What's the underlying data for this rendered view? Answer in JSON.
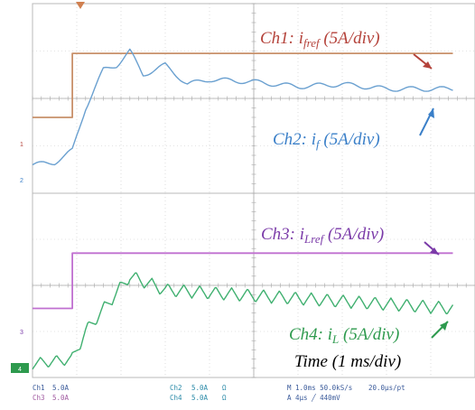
{
  "chart_data": {
    "type": "line",
    "instrument": "oscilloscope",
    "time_label": "Time (1 ms/div)",
    "annotations": [
      {
        "prefix": "Ch1: i",
        "sub": "fref",
        "suffix": " (5A/div)",
        "color": "#b4423a"
      },
      {
        "prefix": "Ch2: i",
        "sub": "f",
        "suffix": " (5A/div)",
        "color": "#3a7fc8"
      },
      {
        "prefix": "Ch3: i",
        "sub": "Lref",
        "suffix": " (5A/div)",
        "color": "#7a3aa8"
      },
      {
        "prefix": "Ch4: i",
        "sub": "L",
        "suffix": " (5A/div)",
        "color": "#2e9a4e"
      }
    ],
    "series": [
      {
        "name": "Ch1",
        "color": "#c8906a",
        "x": [
          0,
          0.9,
          0.9,
          9.5
        ],
        "y": [
          1.6,
          1.6,
          2.95,
          2.95
        ]
      },
      {
        "name": "Ch2",
        "color": "#6aa0d0",
        "x": [
          0,
          0.5,
          0.9,
          1.2,
          1.6,
          1.9,
          2.2,
          2.5,
          3,
          3.5,
          4,
          5,
          6,
          7,
          8,
          9.5
        ],
        "y": [
          0.6,
          0.65,
          0.9,
          1.8,
          2.6,
          2.7,
          3.0,
          2.5,
          2.7,
          2.3,
          2.4,
          2.35,
          2.25,
          2.3,
          2.2,
          2.2
        ]
      },
      {
        "name": "Ch3",
        "color": "#c070d0",
        "x": [
          0,
          0.9,
          0.9,
          9.5
        ],
        "y": [
          1.5,
          1.5,
          2.7,
          2.7
        ]
      },
      {
        "name": "Ch4",
        "color": "#40b070",
        "x": [
          0,
          0.9,
          1.2,
          2.2,
          3.0,
          9.5
        ],
        "y": [
          0.3,
          0.4,
          1.0,
          2.2,
          1.9,
          1.5
        ]
      }
    ],
    "status": {
      "row1": [
        "Ch1",
        "5.0A",
        "Ch2",
        "5.0A",
        "Ω",
        "M 1.0ms 50.0kS/s",
        "20.0µs/pt"
      ],
      "row2": [
        "Ch3",
        "5.0A",
        "Ch4",
        "5.0A",
        "Ω",
        "A  4µs  ╱  440mV",
        ""
      ]
    },
    "markers": {
      "m1": "1",
      "m2": "2",
      "m3": "3",
      "m4": "4"
    }
  }
}
